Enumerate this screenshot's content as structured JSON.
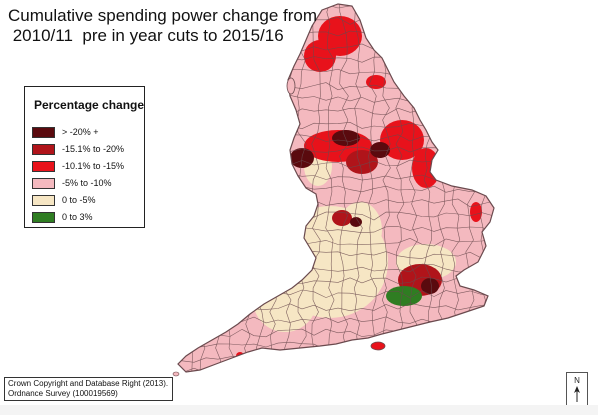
{
  "title": {
    "line1": "Cumulative spending power change from",
    "line2": " 2010/11  pre in year cuts to 2015/16"
  },
  "legend": {
    "title": "Percentage change",
    "items": [
      {
        "label": "> -20% +",
        "color": "#5a0a0e"
      },
      {
        "label": "-15.1% to -20%",
        "color": "#b0141a"
      },
      {
        "label": "-10.1% to -15%",
        "color": "#e8121b"
      },
      {
        "label": "-5% to -10%",
        "color": "#f4b9bf"
      },
      {
        "label": "0 to -5%",
        "color": "#f6e6c4"
      },
      {
        "label": "0 to 3%",
        "color": "#2f7d22"
      }
    ]
  },
  "credit": {
    "line1": "Crown Copyright and Database Right (2013).",
    "line2": "Ordnance Survey (100019569)"
  },
  "north_arrow": {
    "letter": "N"
  },
  "colors": {
    "border": "#6a4a4e",
    "background": "#ffffff"
  }
}
